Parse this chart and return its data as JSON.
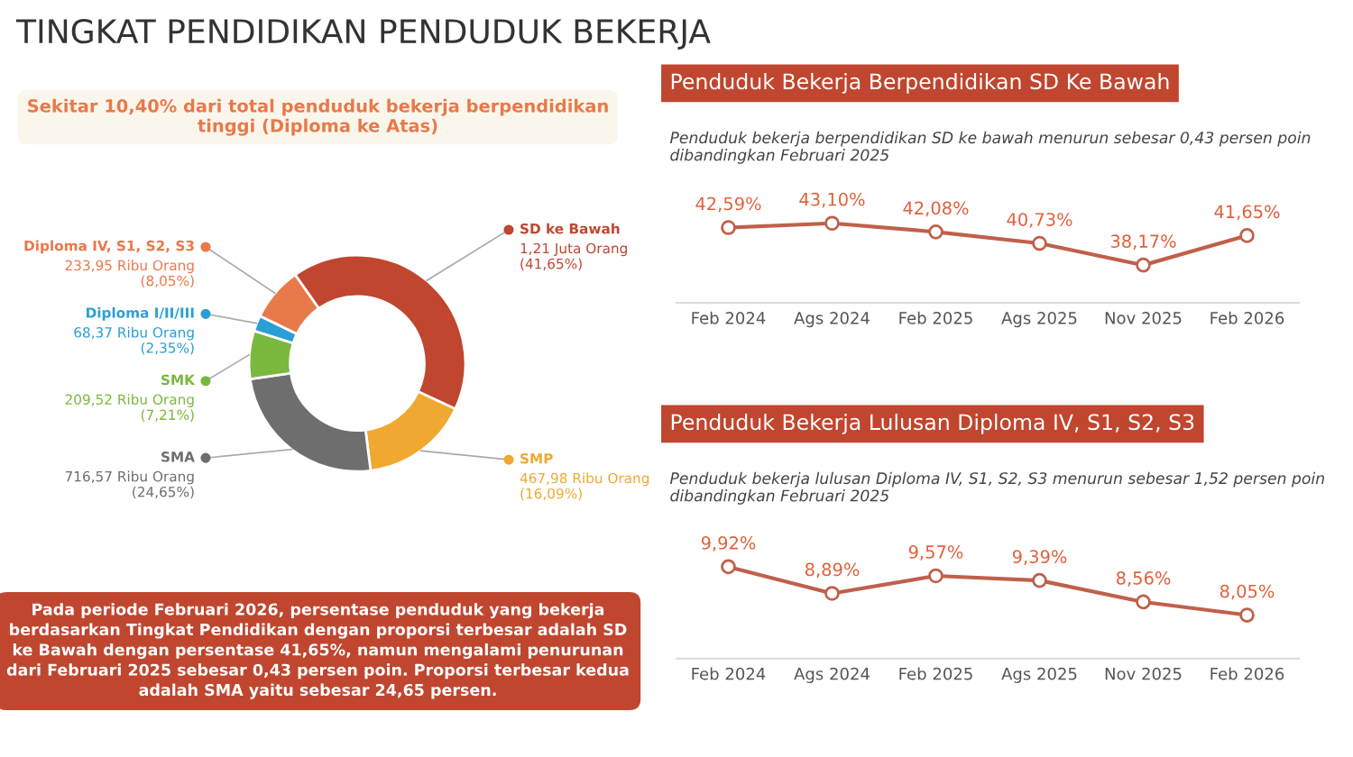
{
  "chart_data": [
    {
      "type": "donut",
      "title": "TINGKAT PENDIDIKAN PENDUDUK BEKERJA",
      "subtitle": "Sekitar 10,40% dari total penduduk bekerja berpendidikan tinggi (Diploma ke Atas)",
      "categories": [
        "SD ke Bawah",
        "SMP",
        "SMA",
        "SMK",
        "Diploma I/II/III",
        "Diploma IV, S1, S2, S3"
      ],
      "values": [
        41.65,
        16.09,
        24.65,
        7.21,
        2.35,
        8.05
      ],
      "value_labels": [
        "1,21 Juta Orang\n(41,65%)",
        "467,98 Ribu Orang\n(16,09%)",
        "716,57 Ribu Orang\n(24,65%)",
        "209,52 Ribu Orang\n(7,21%)",
        "68,37 Ribu Orang\n(2,35%)",
        "233,95 Ribu Orang\n(8,05%)"
      ],
      "colors": [
        "#c0462f",
        "#f0a830",
        "#6e6e6e",
        "#7ab83e",
        "#2a9fd6",
        "#e8794a"
      ],
      "legend": "left",
      "annotations": [
        "Pada periode Februari 2026, persentase penduduk yang bekerja berdasarkan Tingkat Pendidikan dengan proporsi terbesar adalah SD ke Bawah dengan persentase 41,65%, namun mengalami penurunan dari Februari 2025 sebesar 0,43 persen poin. Proporsi terbesar kedua adalah SMA yaitu sebesar 24,65 persen."
      ]
    },
    {
      "type": "line",
      "title": "Penduduk Bekerja Berpendidikan SD Ke Bawah",
      "subtitle": "Penduduk bekerja berpendidikan SD ke bawah menurun sebesar 0,43 persen poin dibandingkan Februari 2025",
      "categories": [
        "Feb 2024",
        "Ags 2024",
        "Feb 2025",
        "Ags 2025",
        "Nov 2025",
        "Feb 2026"
      ],
      "values": [
        42.59,
        43.1,
        42.08,
        40.73,
        38.17,
        41.65
      ],
      "value_labels": [
        "42,59%",
        "43,10%",
        "42,08%",
        "40,73%",
        "38,17%",
        "41,65%"
      ],
      "color": "#c0604a",
      "marker": "circle",
      "tick_labels": "x"
    },
    {
      "type": "line",
      "title": "Penduduk Bekerja Lulusan Diploma IV, S1, S2, S3",
      "subtitle": "Penduduk bekerja lulusan Diploma IV, S1, S2, S3 menurun sebesar 1,52 persen poin dibandingkan Februari 2025",
      "categories": [
        "Feb 2024",
        "Ags 2024",
        "Feb 2025",
        "Ags 2025",
        "Nov 2025",
        "Feb 2026"
      ],
      "values": [
        9.92,
        8.89,
        9.57,
        9.39,
        8.56,
        8.05
      ],
      "value_labels": [
        "9,92%",
        "8,89%",
        "9,57%",
        "9,39%",
        "8,56%",
        "8,05%"
      ],
      "color": "#c0604a",
      "marker": "circle",
      "tick_labels": "x"
    }
  ]
}
